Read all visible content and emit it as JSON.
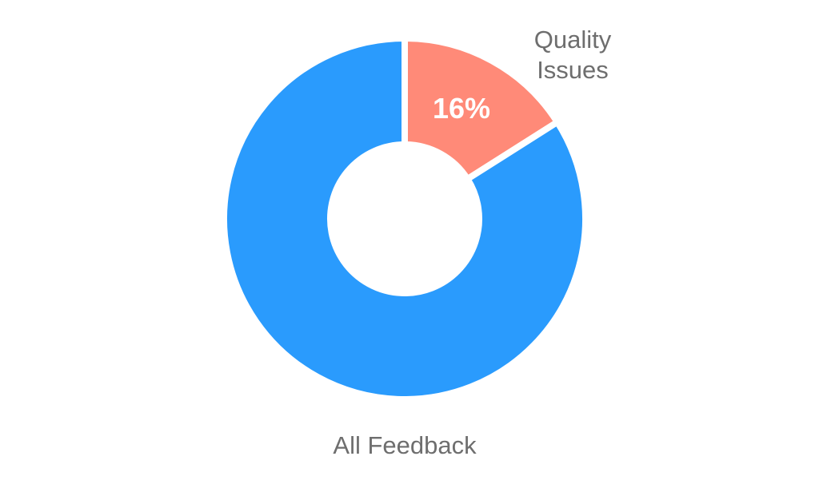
{
  "chart_data": {
    "type": "pie",
    "donut": true,
    "slices": [
      {
        "label": "Quality Issues",
        "label_lines": [
          "Quality",
          "Issues"
        ],
        "value": 16,
        "data_label": "16%",
        "color": "#FF8A78"
      },
      {
        "label": "All Feedback",
        "label_lines": [
          "All Feedback"
        ],
        "value": 84,
        "data_label": "",
        "color": "#2A9BFD"
      }
    ],
    "start_angle_deg": 0,
    "direction": "clockwise",
    "legend": "none"
  }
}
